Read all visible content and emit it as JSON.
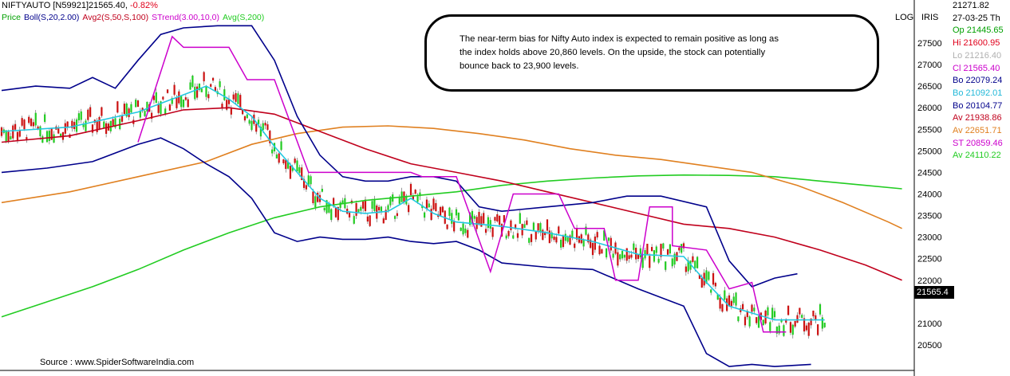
{
  "header": {
    "symbol_line": "NIFTYAUTO [N59921]21565.40,",
    "change": "-0.82%",
    "change_color": "#e0001b",
    "indicators": [
      {
        "label": "Price",
        "color": "#00a000"
      },
      {
        "label": "Boll(S,20,2.00)",
        "color": "#00008b"
      },
      {
        "label": "Avg2(S,50,S,100)",
        "color": "#c0001c"
      },
      {
        "label": "STrend(3.00,10,0)",
        "color": "#cc00cc"
      },
      {
        "label": "Avg(S,200)",
        "color": "#22cc22"
      }
    ]
  },
  "note": {
    "lines": [
      "The near-term bias for Nifty Auto index is expected to remain positive as long as",
      "the index holds above 20,860 levels. On the upside, the stock can potentially",
      "bounce back to 23,900 levels."
    ]
  },
  "source": "Source : www.SpiderSoftwareIndia.com",
  "tags": {
    "log": "LOG",
    "iris": "IRIS"
  },
  "axis": {
    "ticks": [
      "27500",
      "27000",
      "26500",
      "26000",
      "25500",
      "25000",
      "24500",
      "24000",
      "23500",
      "23000",
      "22500",
      "22000",
      "21000",
      "20500"
    ],
    "last_price": "21565.4"
  },
  "side_panel": [
    {
      "text": "21271.82",
      "color": "#000000"
    },
    {
      "text": "27-03-25 Th",
      "color": "#000000"
    },
    {
      "text": "Op 21445.65",
      "color": "#00a000"
    },
    {
      "text": "Hi  21600.95",
      "color": "#e0001b"
    },
    {
      "text": "Lo  21216.40",
      "color": "#b0b0b0"
    },
    {
      "text": "Cl  21565.40",
      "color": "#cc00cc"
    },
    {
      "text": "Bo 22079.24",
      "color": "#00008b"
    },
    {
      "text": "Bo 21092.01",
      "color": "#22b8d8"
    },
    {
      "text": "Bo 20104.77",
      "color": "#00008b"
    },
    {
      "text": "Av 21938.86",
      "color": "#c0001c"
    },
    {
      "text": "Av 22651.71",
      "color": "#e08020"
    },
    {
      "text": "ST 20859.46",
      "color": "#cc00cc"
    },
    {
      "text": "Av 24110.22",
      "color": "#22cc22"
    }
  ],
  "chart_data": {
    "type": "line",
    "title": "NIFTYAUTO",
    "ylim": [
      20100,
      27800
    ],
    "x_count": 180,
    "series": [
      {
        "name": "Avg(S,200)",
        "color": "#22cc22",
        "points": [
          [
            0,
            21150
          ],
          [
            20,
            21500
          ],
          [
            40,
            21850
          ],
          [
            60,
            22250
          ],
          [
            80,
            22700
          ],
          [
            100,
            23100
          ],
          [
            120,
            23450
          ],
          [
            140,
            23700
          ],
          [
            160,
            23850
          ],
          [
            180,
            23950
          ],
          [
            200,
            24050
          ],
          [
            220,
            24200
          ],
          [
            240,
            24300
          ],
          [
            260,
            24370
          ],
          [
            280,
            24420
          ],
          [
            300,
            24440
          ],
          [
            320,
            24430
          ],
          [
            340,
            24400
          ],
          [
            360,
            24300
          ],
          [
            380,
            24200
          ],
          [
            396,
            24120
          ]
        ]
      },
      {
        "name": "Avg 100",
        "color": "#e08020",
        "points": [
          [
            0,
            23800
          ],
          [
            30,
            24050
          ],
          [
            60,
            24400
          ],
          [
            90,
            24750
          ],
          [
            110,
            25150
          ],
          [
            130,
            25400
          ],
          [
            150,
            25550
          ],
          [
            170,
            25580
          ],
          [
            190,
            25520
          ],
          [
            210,
            25400
          ],
          [
            230,
            25250
          ],
          [
            250,
            25050
          ],
          [
            270,
            24900
          ],
          [
            290,
            24800
          ],
          [
            310,
            24650
          ],
          [
            330,
            24500
          ],
          [
            350,
            24200
          ],
          [
            370,
            23800
          ],
          [
            390,
            23350
          ],
          [
            396,
            23200
          ]
        ]
      },
      {
        "name": "Avg2 50",
        "color": "#c0001c",
        "points": [
          [
            0,
            25200
          ],
          [
            30,
            25350
          ],
          [
            60,
            25700
          ],
          [
            80,
            25950
          ],
          [
            100,
            26000
          ],
          [
            120,
            25850
          ],
          [
            140,
            25450
          ],
          [
            160,
            25050
          ],
          [
            180,
            24700
          ],
          [
            200,
            24500
          ],
          [
            220,
            24300
          ],
          [
            240,
            24050
          ],
          [
            260,
            23800
          ],
          [
            280,
            23550
          ],
          [
            300,
            23300
          ],
          [
            320,
            23200
          ],
          [
            340,
            23000
          ],
          [
            360,
            22700
          ],
          [
            380,
            22350
          ],
          [
            396,
            22000
          ]
        ]
      },
      {
        "name": "Boll mid",
        "color": "#22c8e0",
        "points": [
          [
            0,
            25450
          ],
          [
            30,
            25550
          ],
          [
            60,
            25900
          ],
          [
            80,
            26300
          ],
          [
            90,
            26500
          ],
          [
            100,
            26200
          ],
          [
            110,
            25800
          ],
          [
            120,
            25100
          ],
          [
            130,
            24500
          ],
          [
            140,
            23900
          ],
          [
            150,
            23600
          ],
          [
            160,
            23550
          ],
          [
            170,
            23600
          ],
          [
            180,
            23900
          ],
          [
            190,
            23550
          ],
          [
            200,
            23350
          ],
          [
            220,
            23250
          ],
          [
            240,
            23100
          ],
          [
            260,
            22900
          ],
          [
            280,
            22600
          ],
          [
            300,
            22550
          ],
          [
            310,
            21950
          ],
          [
            320,
            21400
          ],
          [
            340,
            21080
          ],
          [
            362,
            21080
          ]
        ]
      },
      {
        "name": "Boll upper",
        "color": "#00008b",
        "points": [
          [
            0,
            26400
          ],
          [
            15,
            26500
          ],
          [
            30,
            26450
          ],
          [
            40,
            26700
          ],
          [
            50,
            26450
          ],
          [
            60,
            27100
          ],
          [
            70,
            27700
          ],
          [
            80,
            27850
          ],
          [
            95,
            27900
          ],
          [
            110,
            27900
          ],
          [
            120,
            27100
          ],
          [
            130,
            25800
          ],
          [
            140,
            24900
          ],
          [
            150,
            24400
          ],
          [
            160,
            24300
          ],
          [
            170,
            24300
          ],
          [
            180,
            24400
          ],
          [
            190,
            24400
          ],
          [
            200,
            24300
          ],
          [
            210,
            23700
          ],
          [
            220,
            23600
          ],
          [
            240,
            23700
          ],
          [
            260,
            23800
          ],
          [
            275,
            23950
          ],
          [
            290,
            23950
          ],
          [
            310,
            23700
          ],
          [
            320,
            22450
          ],
          [
            330,
            21850
          ],
          [
            340,
            22050
          ],
          [
            350,
            22150
          ]
        ]
      },
      {
        "name": "Boll lower",
        "color": "#00008b",
        "points": [
          [
            0,
            24500
          ],
          [
            20,
            24600
          ],
          [
            40,
            24750
          ],
          [
            60,
            25150
          ],
          [
            70,
            25300
          ],
          [
            80,
            25050
          ],
          [
            90,
            24700
          ],
          [
            100,
            24400
          ],
          [
            110,
            23900
          ],
          [
            120,
            23100
          ],
          [
            130,
            22900
          ],
          [
            140,
            23000
          ],
          [
            150,
            22950
          ],
          [
            160,
            22950
          ],
          [
            170,
            23000
          ],
          [
            180,
            22900
          ],
          [
            190,
            22850
          ],
          [
            200,
            22900
          ],
          [
            210,
            22700
          ],
          [
            220,
            22400
          ],
          [
            240,
            22300
          ],
          [
            260,
            22250
          ],
          [
            280,
            21800
          ],
          [
            300,
            21400
          ],
          [
            310,
            20300
          ],
          [
            320,
            20000
          ],
          [
            330,
            20050
          ],
          [
            340,
            20000
          ],
          [
            356,
            20050
          ]
        ]
      },
      {
        "name": "STrend",
        "color": "#cc00cc",
        "points": [
          [
            60,
            25200
          ],
          [
            75,
            27650
          ],
          [
            80,
            27400
          ],
          [
            90,
            27400
          ],
          [
            100,
            27400
          ],
          [
            108,
            26650
          ],
          [
            120,
            26650
          ],
          [
            135,
            24500
          ],
          [
            180,
            24500
          ],
          [
            185,
            24400
          ],
          [
            200,
            24400
          ],
          [
            215,
            22200
          ],
          [
            225,
            24000
          ],
          [
            245,
            24000
          ],
          [
            252,
            23200
          ],
          [
            265,
            23200
          ],
          [
            270,
            22000
          ],
          [
            280,
            22000
          ],
          [
            285,
            23700
          ],
          [
            295,
            23700
          ],
          [
            295,
            22800
          ],
          [
            310,
            22700
          ],
          [
            320,
            21800
          ],
          [
            330,
            21950
          ],
          [
            335,
            20800
          ],
          [
            345,
            20800
          ]
        ]
      }
    ]
  }
}
